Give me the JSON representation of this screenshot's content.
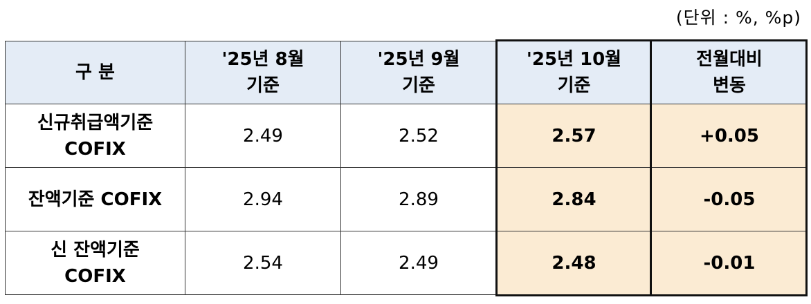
{
  "unit_note": "(단위 : %, %p)",
  "headers": [
    "구 분",
    "'25년 8월\n기준",
    "'25년 9월\n기준",
    "'25년 10월\n기준",
    "전월대비\n변동"
  ],
  "rows": [
    {
      "label": "신규취급액기준\nCOFIX",
      "aug": "2.49",
      "sep": "2.52",
      "oct": "2.57",
      "change": "+0.05"
    },
    {
      "label": "잔액기준 COFIX",
      "aug": "2.94",
      "sep": "2.89",
      "oct": "2.84",
      "change": "-0.05"
    },
    {
      "label": "신 잔액기준\nCOFIX",
      "aug": "2.54",
      "sep": "2.49",
      "oct": "2.48",
      "change": "-0.01"
    }
  ],
  "colors": {
    "header_bg": "#e4ecf6",
    "highlight_bg": "#fbebd3",
    "highlight_border": "#111111"
  }
}
